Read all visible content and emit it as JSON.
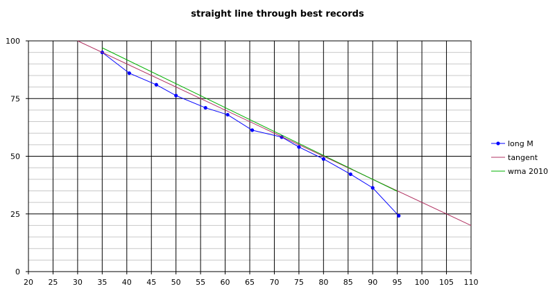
{
  "chart_data": {
    "type": "line",
    "title": "straight line through best records",
    "xlabel": "",
    "ylabel": "",
    "xlim": [
      20,
      110
    ],
    "ylim": [
      0,
      100
    ],
    "x_ticks": [
      20,
      25,
      30,
      35,
      40,
      45,
      50,
      55,
      60,
      65,
      70,
      75,
      80,
      85,
      90,
      95,
      100,
      105,
      110
    ],
    "y_ticks": [
      0,
      25,
      50,
      75,
      100
    ],
    "grid": true,
    "legend_position": "right",
    "series": [
      {
        "name": "long M",
        "color": "#0000ff",
        "marker": "circle",
        "x": [
          35,
          40.5,
          46,
          50,
          56,
          60.5,
          65.5,
          71.5,
          75,
          80,
          85.5,
          90,
          95.3
        ],
        "y": [
          95,
          86,
          81,
          76.3,
          71,
          68,
          61.3,
          58.3,
          54,
          48.8,
          42.2,
          36.3,
          24.2
        ]
      },
      {
        "name": "tangent",
        "color": "#b03060",
        "marker": "none",
        "x": [
          30,
          110
        ],
        "y": [
          100,
          20
        ]
      },
      {
        "name": "wma 2010",
        "color": "#00b000",
        "marker": "none",
        "x": [
          35,
          95
        ],
        "y": [
          97,
          34.8
        ]
      }
    ]
  }
}
